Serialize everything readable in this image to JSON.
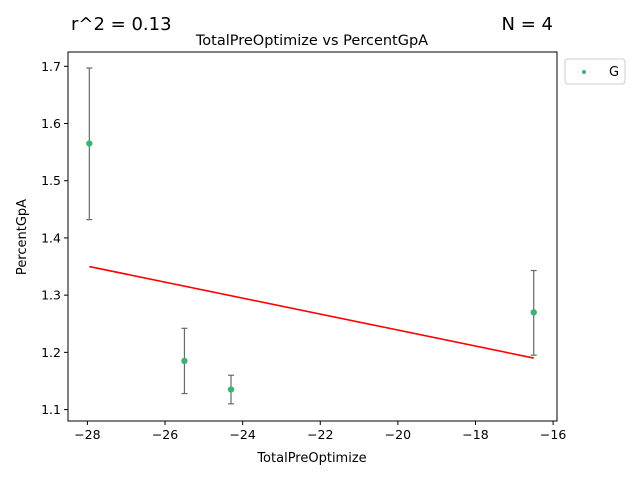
{
  "chart_data": {
    "type": "scatter",
    "title": "TotalPreOptimize vs PercentGpA",
    "xlabel": "TotalPreOptimize",
    "ylabel": "PercentGpA",
    "stats_left": "r^2 = 0.13",
    "stats_right": "N = 4",
    "xlim": [
      -28.5,
      -15.9
    ],
    "ylim": [
      1.08,
      1.725
    ],
    "x_ticks": [
      -28,
      -26,
      -24,
      -22,
      -20,
      -18,
      -16
    ],
    "x_tick_labels": [
      "−28",
      "−26",
      "−24",
      "−22",
      "−20",
      "−18",
      "−16"
    ],
    "y_ticks": [
      1.1,
      1.2,
      1.3,
      1.4,
      1.5,
      1.6,
      1.7
    ],
    "y_tick_labels": [
      "1.1",
      "1.2",
      "1.3",
      "1.4",
      "1.5",
      "1.6",
      "1.7"
    ],
    "grid": false,
    "legend_position": "outside top-right",
    "series": [
      {
        "name": "G",
        "color": "#3cb371",
        "points": [
          {
            "x": -27.95,
            "y": 1.565,
            "err_low": 1.432,
            "err_high": 1.697
          },
          {
            "x": -25.5,
            "y": 1.185,
            "err_low": 1.128,
            "err_high": 1.242
          },
          {
            "x": -24.3,
            "y": 1.135,
            "err_low": 1.11,
            "err_high": 1.16
          },
          {
            "x": -16.5,
            "y": 1.27,
            "err_low": 1.195,
            "err_high": 1.343
          }
        ]
      }
    ],
    "fit_line": {
      "color": "#ff0000",
      "x": [
        -27.95,
        -16.5
      ],
      "y": [
        1.35,
        1.19
      ]
    },
    "error_bar_color": "#696969"
  }
}
